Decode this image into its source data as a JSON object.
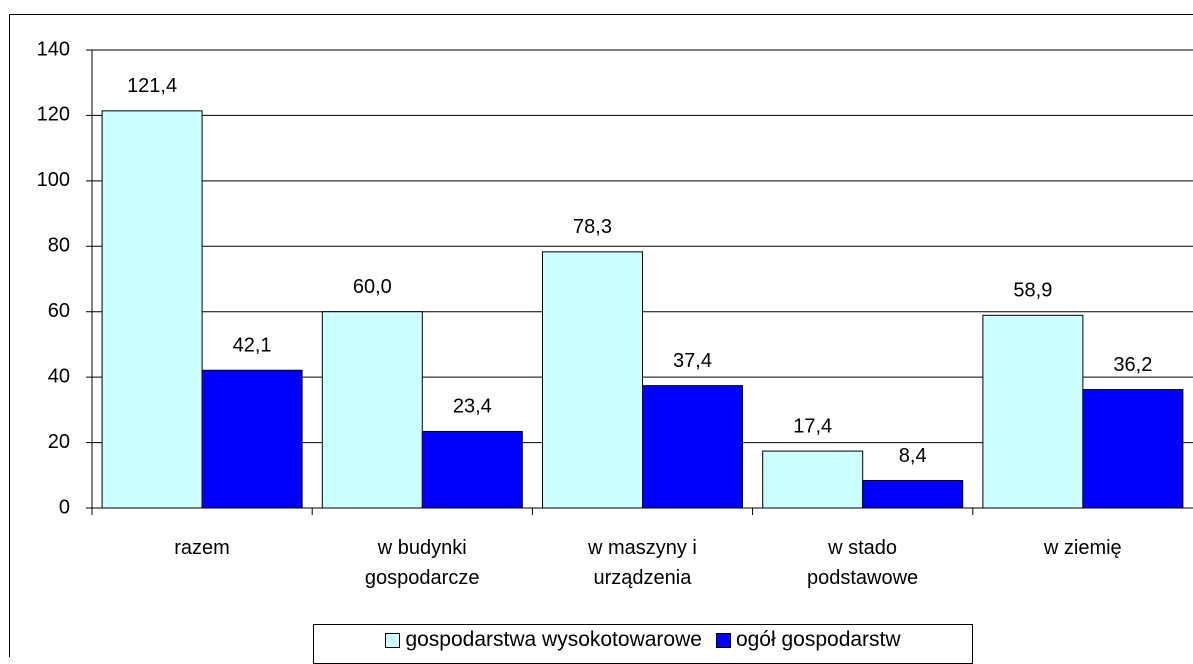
{
  "chart_data": {
    "type": "bar",
    "categories": [
      "razem",
      "w budynki\ngospodarcze",
      "w maszyny i\nurządzenia",
      "w stado\npodstawowe",
      "w ziemię"
    ],
    "series": [
      {
        "name": "gospodarstwa wysokotowarowe",
        "color": "#ccffff",
        "values": [
          121.4,
          60.0,
          78.3,
          17.4,
          58.9
        ],
        "value_labels": [
          "121,4",
          "60,0",
          "78,3",
          "17,4",
          "58,9"
        ]
      },
      {
        "name": "ogół gospodarstw",
        "color": "#0000ff",
        "values": [
          42.1,
          23.4,
          37.4,
          8.4,
          36.2
        ],
        "value_labels": [
          "42,1",
          "23,4",
          "37,4",
          "8,4",
          "36,2"
        ]
      }
    ],
    "ylim": [
      0,
      140
    ],
    "yticks": [
      0,
      20,
      40,
      60,
      80,
      100,
      120,
      140
    ],
    "grid": true,
    "legend": "bottom"
  }
}
